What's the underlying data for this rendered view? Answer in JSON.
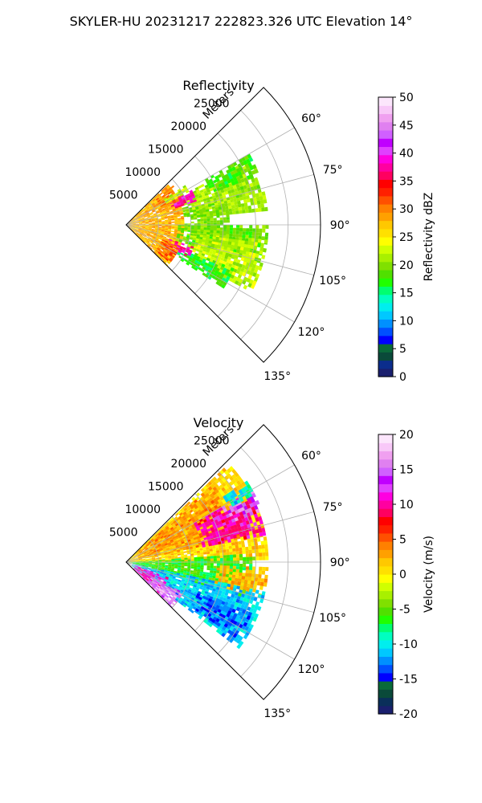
{
  "figure": {
    "suptitle": "SKYLER-HU  20231217  222823.326 UTC Elevation 14°"
  },
  "chart_data": [
    {
      "type": "heatmap",
      "projection": "polar-sector",
      "title": "Reflectivity",
      "radial_axis_label": "Meters",
      "radial_ticks": [
        5000,
        10000,
        15000,
        20000,
        25000
      ],
      "radial_range": [
        0,
        30000
      ],
      "azimuth_range_deg": [
        45,
        135
      ],
      "azimuth_ticks": [
        60,
        75,
        90,
        105,
        120,
        135
      ],
      "azimuth_tick_labels": [
        "60°",
        "75°",
        "90°",
        "105°",
        "120°",
        "135°"
      ],
      "grid": true,
      "colorbar": {
        "label": "Reflectivity dBZ",
        "range": [
          0,
          50
        ],
        "ticks": [
          0,
          5,
          10,
          15,
          20,
          25,
          30,
          35,
          40,
          45,
          50
        ],
        "colors": [
          "#1a1f6e",
          "#0b2d8c",
          "#0a4a3a",
          "#0a6a3a",
          "#0000ff",
          "#0050ff",
          "#0090ff",
          "#00c8ff",
          "#00eeee",
          "#00ffc0",
          "#00ff70",
          "#20ff00",
          "#50e000",
          "#80e000",
          "#a8f000",
          "#d0ff00",
          "#ffff00",
          "#ffe000",
          "#ffc800",
          "#ffa000",
          "#ff8000",
          "#ff5000",
          "#ff2000",
          "#ff0000",
          "#ff0060",
          "#ff00a0",
          "#ff00e0",
          "#e040ff",
          "#c000ff",
          "#d060ff",
          "#e080f0",
          "#f0a0f0",
          "#f8c8f8",
          "#fce6fc"
        ]
      },
      "echo_features": [
        {
          "azimuth_range": [
            46,
            134
          ],
          "range_m": [
            0,
            9000
          ],
          "level": 28
        },
        {
          "azimuth_range": [
            62,
            84
          ],
          "range_m": [
            9000,
            22000
          ],
          "level": 21
        },
        {
          "azimuth_range": [
            60,
            68
          ],
          "range_m": [
            14000,
            22000
          ],
          "level": 18
        },
        {
          "azimuth_range": [
            90,
            106
          ],
          "range_m": [
            8000,
            22000
          ],
          "level": 19
        },
        {
          "azimuth_range": [
            96,
            118
          ],
          "range_m": [
            10000,
            22000
          ],
          "level": 22
        },
        {
          "azimuth_range": [
            112,
            122
          ],
          "range_m": [
            9000,
            18000
          ],
          "level": 17
        },
        {
          "azimuth_range": [
            76,
            96
          ],
          "range_m": [
            9000,
            16000
          ],
          "level": 20
        },
        {
          "azimuth_range": [
            62,
            70
          ],
          "range_m": [
            7500,
            11500
          ],
          "level": 38
        },
        {
          "azimuth_range": [
            108,
            116
          ],
          "range_m": [
            7000,
            11000
          ],
          "level": 38
        },
        {
          "azimuth_range": [
            50,
            65
          ],
          "range_m": [
            6000,
            9500
          ],
          "level": 30
        },
        {
          "azimuth_range": [
            112,
            130
          ],
          "range_m": [
            6000,
            9000
          ],
          "level": 31
        },
        {
          "azimuth_range": [
            56,
            62
          ],
          "range_m": [
            7000,
            11000
          ],
          "level": 22
        }
      ]
    },
    {
      "type": "heatmap",
      "projection": "polar-sector",
      "title": "Velocity",
      "radial_axis_label": "Meters",
      "radial_ticks": [
        5000,
        10000,
        15000,
        20000,
        25000
      ],
      "radial_range": [
        0,
        30000
      ],
      "azimuth_range_deg": [
        45,
        135
      ],
      "azimuth_ticks": [
        60,
        75,
        90,
        105,
        120,
        135
      ],
      "azimuth_tick_labels": [
        "60°",
        "75°",
        "90°",
        "105°",
        "120°",
        "135°"
      ],
      "grid": true,
      "colorbar": {
        "label": "Velocity (m/s)",
        "range": [
          -20,
          20
        ],
        "ticks": [
          -20,
          -15,
          -10,
          -5,
          0,
          5,
          10,
          15,
          20
        ],
        "colors": [
          "#1a1f6e",
          "#0a2f5a",
          "#0a4a3a",
          "#0a6a3a",
          "#0000ff",
          "#0050ff",
          "#0090ff",
          "#00c8ff",
          "#00eeee",
          "#00ffc0",
          "#00ff70",
          "#20ff00",
          "#50e000",
          "#80e000",
          "#a8f000",
          "#d0ff00",
          "#ffff00",
          "#ffe000",
          "#ffc800",
          "#ffa000",
          "#ff8000",
          "#ff5000",
          "#ff2000",
          "#ff0000",
          "#ff0060",
          "#ff00a0",
          "#ff00e0",
          "#e040ff",
          "#c000ff",
          "#d060ff",
          "#e080f0",
          "#f0a0f0",
          "#f8c8f8",
          "#fce6fc"
        ]
      },
      "echo_features": [
        {
          "azimuth_range": [
            46,
            88
          ],
          "range_m": [
            0,
            22000
          ],
          "level": 1
        },
        {
          "azimuth_range": [
            48,
            78
          ],
          "range_m": [
            2000,
            18000
          ],
          "level": 3
        },
        {
          "azimuth_range": [
            60,
            78
          ],
          "range_m": [
            12000,
            22000
          ],
          "level": 10
        },
        {
          "azimuth_range": [
            60,
            68
          ],
          "range_m": [
            17000,
            22500
          ],
          "level": 15
        },
        {
          "azimuth_range": [
            56,
            62
          ],
          "range_m": [
            18000,
            22500
          ],
          "level": -10
        },
        {
          "azimuth_range": [
            86,
            106
          ],
          "range_m": [
            0,
            20000
          ],
          "level": -6
        },
        {
          "azimuth_range": [
            92,
            104
          ],
          "range_m": [
            14000,
            22000
          ],
          "level": 2
        },
        {
          "azimuth_range": [
            102,
            126
          ],
          "range_m": [
            1000,
            22000
          ],
          "level": -11
        },
        {
          "azimuth_range": [
            112,
            124
          ],
          "range_m": [
            12000,
            21000
          ],
          "level": -13
        },
        {
          "azimuth_range": [
            110,
            134
          ],
          "range_m": [
            1500,
            7000
          ],
          "level": 11
        },
        {
          "azimuth_range": [
            118,
            134
          ],
          "range_m": [
            4000,
            10000
          ],
          "level": 16
        }
      ]
    }
  ]
}
